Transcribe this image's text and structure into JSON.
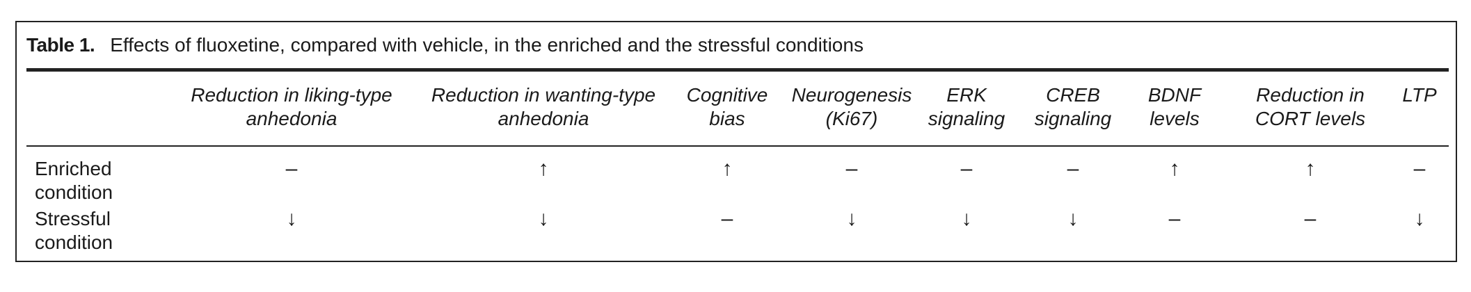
{
  "table": {
    "label": "Table 1.",
    "title": "Effects of fluoxetine, compared with vehicle, in the enriched and the stressful conditions",
    "columns": [
      {
        "line1": "Reduction in liking-type",
        "line2": "anhedonia"
      },
      {
        "line1": "Reduction in wanting-type",
        "line2": "anhedonia"
      },
      {
        "line1": "Cognitive",
        "line2": "bias"
      },
      {
        "line1": "Neurogenesis",
        "line2": "(Ki67)"
      },
      {
        "line1": "ERK",
        "line2": "signaling"
      },
      {
        "line1": "CREB",
        "line2": "signaling"
      },
      {
        "line1": "BDNF",
        "line2": "levels"
      },
      {
        "line1": "Reduction in",
        "line2": "CORT levels"
      },
      {
        "line1": "LTP",
        "line2": ""
      }
    ],
    "rows": [
      {
        "line1": "Enriched",
        "line2": "condition",
        "cells": [
          "–",
          "↑",
          "↑",
          "–",
          "–",
          "–",
          "↑",
          "↑",
          "–"
        ]
      },
      {
        "line1": "Stressful",
        "line2": "condition",
        "cells": [
          "↓",
          "↓",
          "–",
          "↓",
          "↓",
          "↓",
          "–",
          "–",
          "↓"
        ]
      }
    ]
  }
}
